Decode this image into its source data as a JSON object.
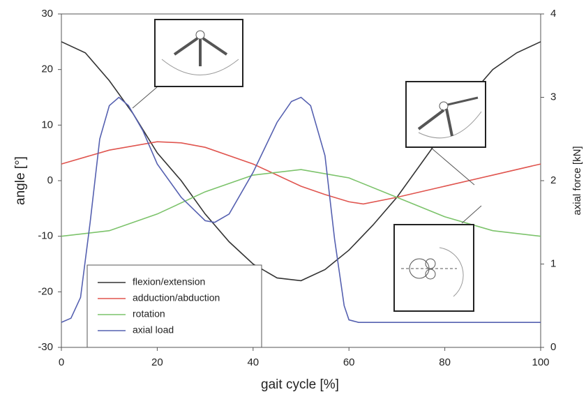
{
  "chart_data": {
    "type": "line",
    "xlabel": "gait cycle [%]",
    "ylabel": "angle [°]",
    "y2label": "axial force [kN]",
    "xlim": [
      0,
      100
    ],
    "xticks": [
      0,
      20,
      40,
      60,
      80,
      100
    ],
    "ylim": [
      -30,
      30
    ],
    "yticks": [
      -30,
      -20,
      -10,
      0,
      10,
      20,
      30
    ],
    "y2lim": [
      0,
      4
    ],
    "y2ticks": [
      0,
      1,
      2,
      3,
      4
    ],
    "grid": false,
    "legend": "lower left",
    "series": [
      {
        "name": "flexion/extension",
        "color": "#333333",
        "x": [
          0,
          5,
          10,
          15,
          20,
          25,
          30,
          35,
          40,
          45,
          50,
          55,
          60,
          65,
          70,
          75,
          80,
          85,
          90,
          95,
          100
        ],
        "values": [
          25,
          23,
          18,
          12,
          5,
          0,
          -6,
          -11,
          -15,
          -17.5,
          -18,
          -16,
          -12.5,
          -8,
          -3,
          3,
          9,
          15,
          20,
          23,
          25
        ]
      },
      {
        "name": "adduction/abduction",
        "color": "#e0554f",
        "x": [
          0,
          10,
          20,
          25,
          30,
          40,
          45,
          50,
          55,
          60,
          63,
          70,
          80,
          90,
          100
        ],
        "values": [
          3,
          5.5,
          7,
          6.8,
          6,
          3,
          1,
          -1,
          -2.5,
          -3.8,
          -4.2,
          -3,
          -1,
          1,
          3
        ]
      },
      {
        "name": "rotation",
        "color": "#7cc36b",
        "x": [
          0,
          10,
          20,
          30,
          40,
          50,
          60,
          70,
          80,
          90,
          100
        ],
        "values": [
          -10,
          -9,
          -6,
          -2,
          1,
          2,
          0.5,
          -3,
          -6.5,
          -9,
          -10
        ]
      },
      {
        "name": "axial load",
        "color": "#5560b0",
        "axis": "y2",
        "x": [
          0,
          2,
          4,
          6,
          8,
          10,
          12,
          14,
          17,
          20,
          25,
          30,
          32,
          35,
          40,
          45,
          48,
          50,
          52,
          55,
          57,
          59,
          60,
          62,
          100
        ],
        "values": [
          0.3,
          0.35,
          0.6,
          1.5,
          2.5,
          2.9,
          3.0,
          2.9,
          2.6,
          2.2,
          1.8,
          1.52,
          1.5,
          1.6,
          2.1,
          2.7,
          2.95,
          3.0,
          2.9,
          2.3,
          1.3,
          0.5,
          0.33,
          0.3,
          0.3
        ]
      }
    ]
  }
}
